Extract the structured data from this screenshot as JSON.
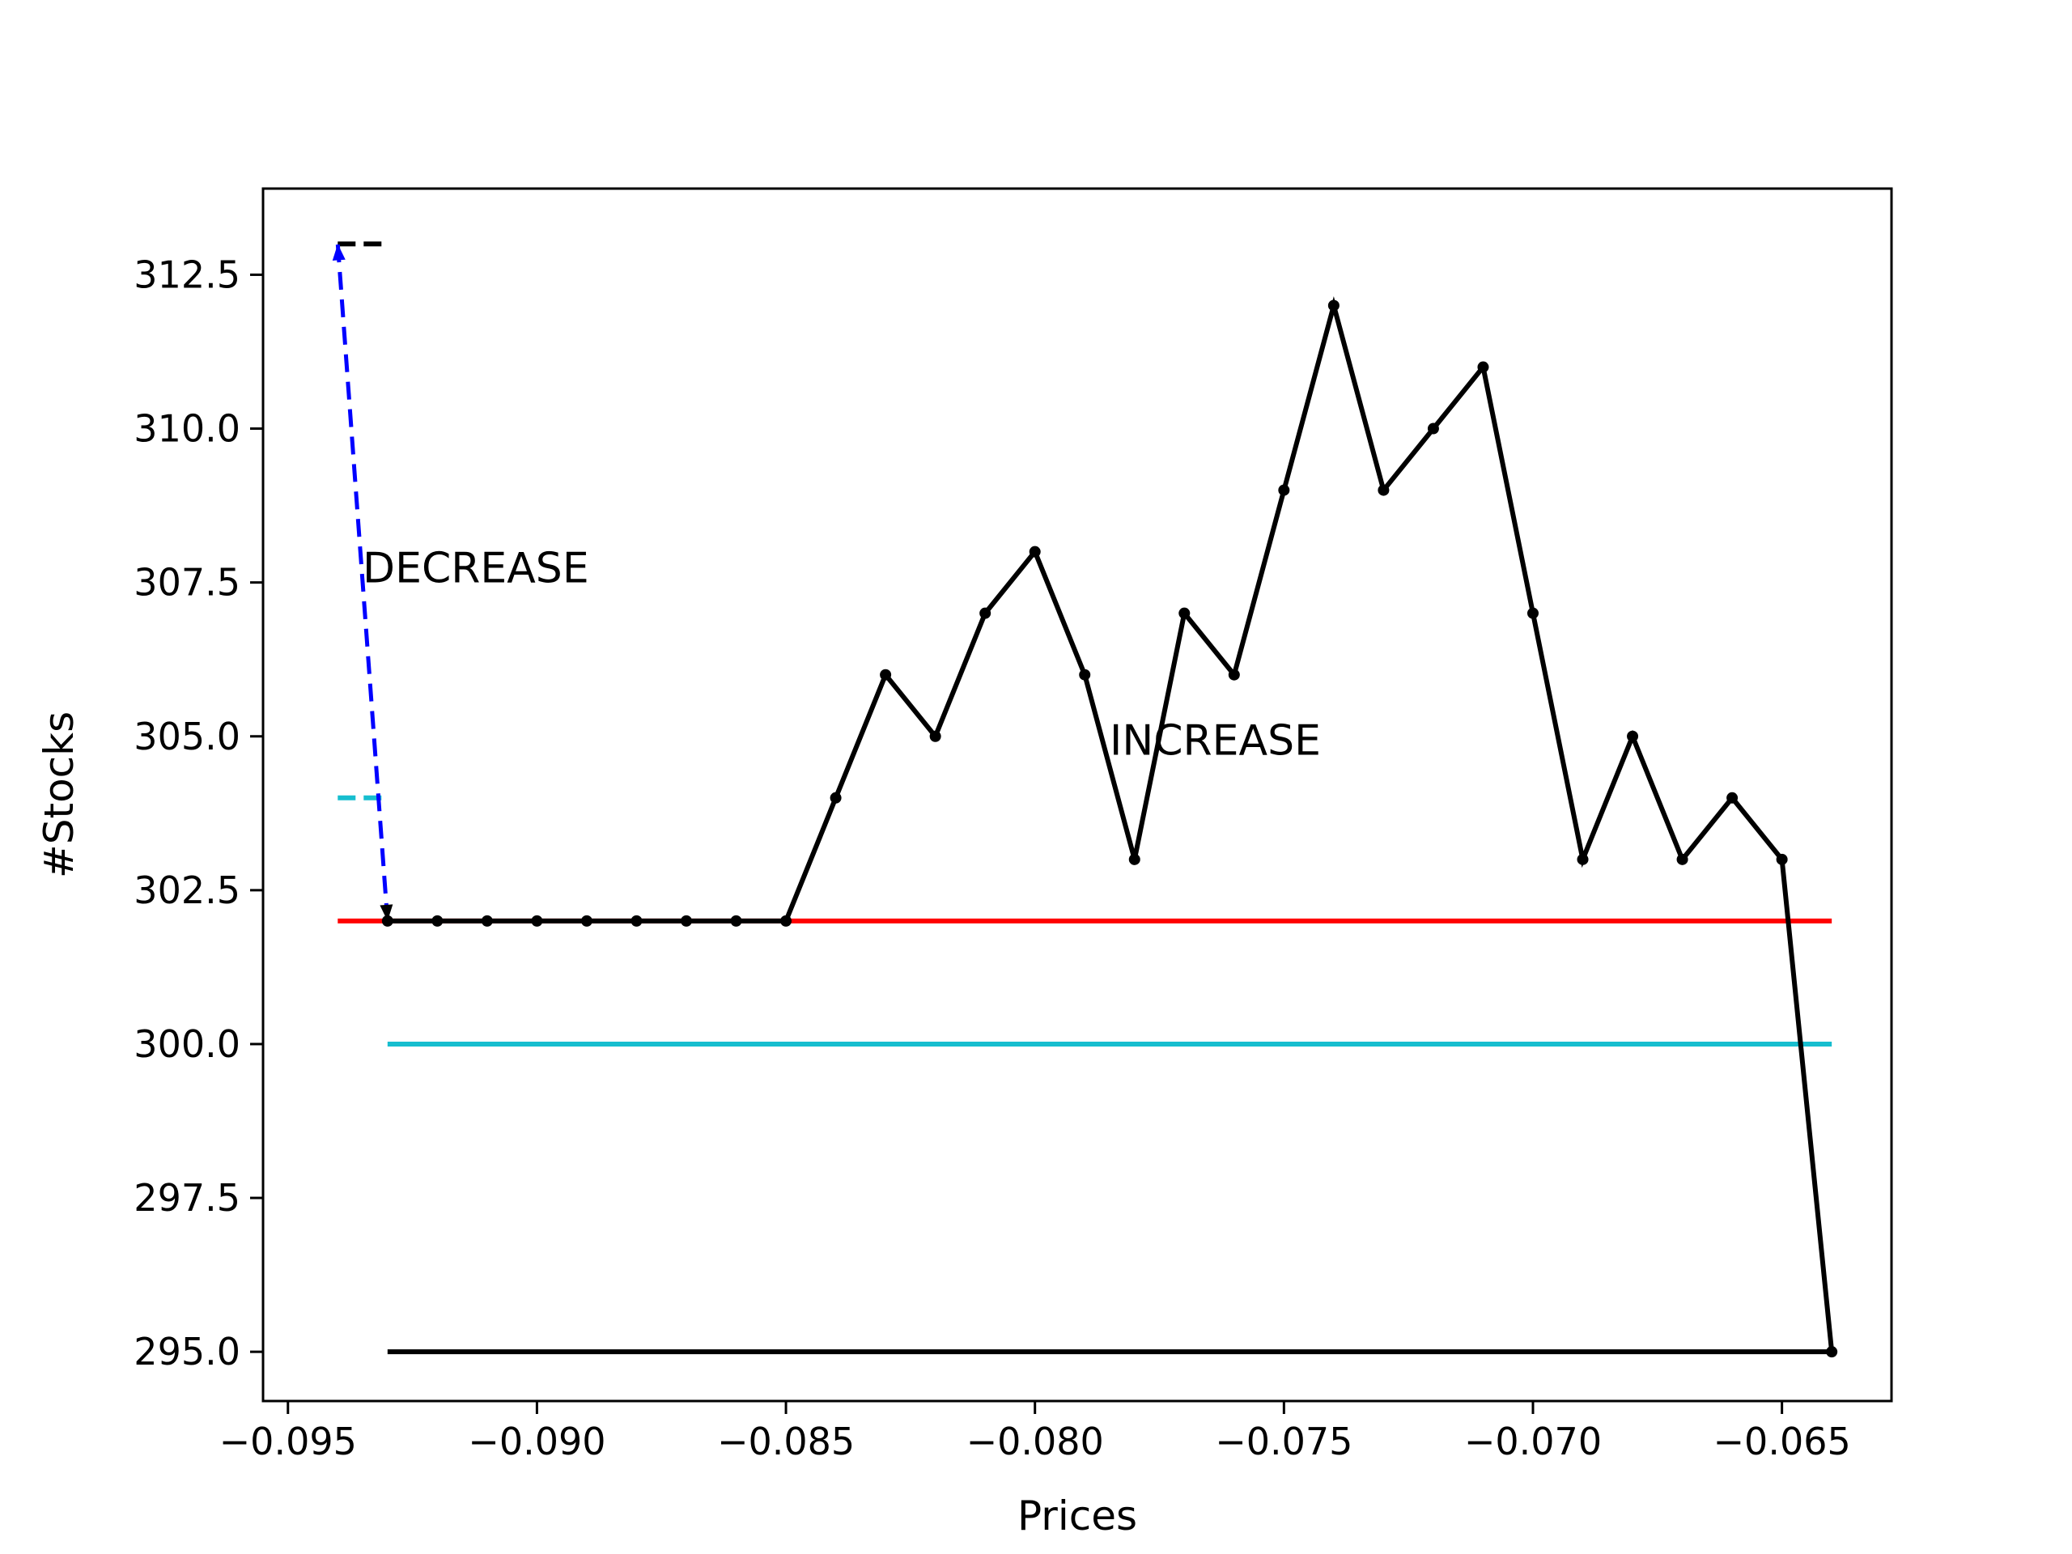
{
  "chart_data": {
    "type": "line",
    "xlabel": "Prices",
    "ylabel": "#Stocks",
    "xlim": [
      -0.0955,
      -0.0628
    ],
    "ylim": [
      294.2,
      313.9
    ],
    "xticks": [
      -0.095,
      -0.09,
      -0.085,
      -0.08,
      -0.075,
      -0.07,
      -0.065
    ],
    "xtick_labels": [
      "−0.095",
      "−0.090",
      "−0.085",
      "−0.080",
      "−0.075",
      "−0.070",
      "−0.065"
    ],
    "yticks": [
      295.0,
      297.5,
      300.0,
      302.5,
      305.0,
      307.5,
      310.0,
      312.5
    ],
    "ytick_labels": [
      "295.0",
      "297.5",
      "300.0",
      "302.5",
      "305.0",
      "307.5",
      "310.0",
      "312.5"
    ],
    "grid": false,
    "series": [
      {
        "style": "solid-with-markers",
        "color": "#000000",
        "x": [
          -0.093,
          -0.092,
          -0.091,
          -0.09,
          -0.089,
          -0.088,
          -0.087,
          -0.086,
          -0.085,
          -0.084,
          -0.083,
          -0.082,
          -0.081,
          -0.08,
          -0.079,
          -0.078,
          -0.077,
          -0.076,
          -0.075,
          -0.074,
          -0.073,
          -0.072,
          -0.071,
          -0.07,
          -0.069,
          -0.068,
          -0.067,
          -0.066,
          -0.065,
          -0.064
        ],
        "y": [
          302,
          302,
          302,
          302,
          302,
          302,
          302,
          302,
          302,
          304,
          306,
          305,
          307,
          308,
          306,
          303,
          307,
          306,
          309,
          312,
          309,
          310,
          311,
          307,
          303,
          305,
          303,
          304,
          303,
          295
        ]
      }
    ],
    "hlines": [
      {
        "color": "#ff0000",
        "y": 302,
        "x": [
          -0.094,
          -0.064
        ],
        "style": "solid"
      },
      {
        "color": "#17becf",
        "y": 300,
        "x": [
          -0.093,
          -0.064
        ],
        "style": "solid"
      },
      {
        "color": "#000000",
        "y": 295,
        "x": [
          -0.093,
          -0.064
        ],
        "style": "solid"
      },
      {
        "color": "#000000",
        "y": 313,
        "x": [
          -0.094,
          -0.093
        ],
        "style": "dashed"
      },
      {
        "color": "#17becf",
        "y": 304,
        "x": [
          -0.094,
          -0.093
        ],
        "style": "dashed"
      }
    ],
    "arrow": {
      "color": "#0000ff",
      "style": "dashed",
      "from": [
        -0.093,
        302
      ],
      "to": [
        -0.094,
        313
      ]
    },
    "annotations": [
      {
        "text": "DECREASE",
        "x": -0.0935,
        "y": 307.5
      },
      {
        "text": "INCREASE",
        "x": -0.0785,
        "y": 304.7
      }
    ]
  }
}
